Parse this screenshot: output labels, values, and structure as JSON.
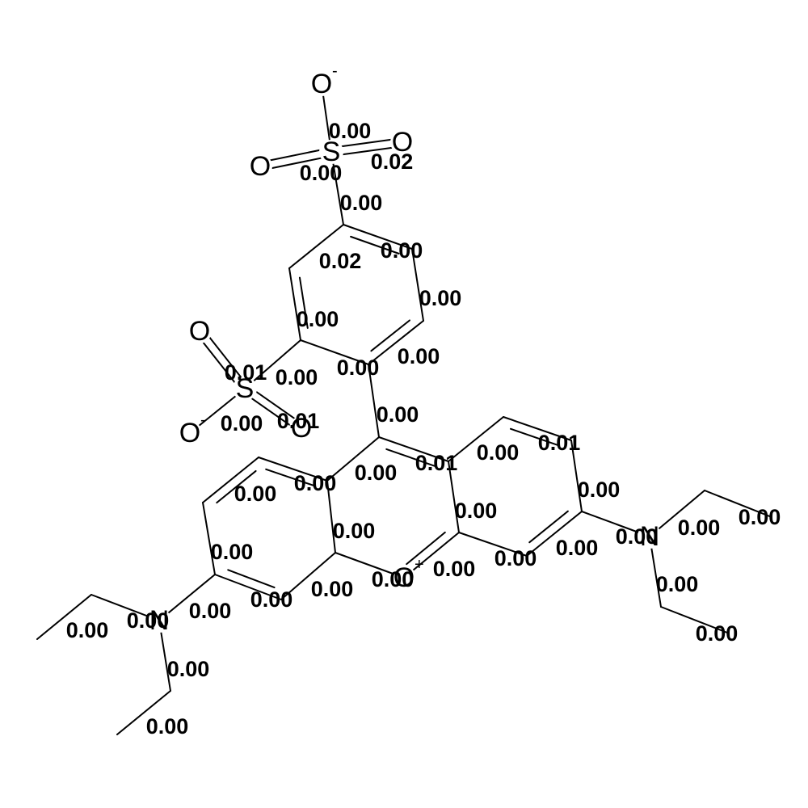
{
  "molecule": {
    "atoms": [
      {
        "id": "O_top_minus",
        "label": "O",
        "charge": "-"
      },
      {
        "id": "S_top",
        "label": "S",
        "charge": ""
      },
      {
        "id": "O_top_left",
        "label": "O",
        "charge": ""
      },
      {
        "id": "O_top_right",
        "label": "O",
        "charge": ""
      },
      {
        "id": "O_mid_top",
        "label": "O",
        "charge": ""
      },
      {
        "id": "S_mid",
        "label": "S",
        "charge": ""
      },
      {
        "id": "O_mid_minus",
        "label": "O",
        "charge": "-"
      },
      {
        "id": "O_mid_right",
        "label": "O",
        "charge": ""
      },
      {
        "id": "N_left",
        "label": "N",
        "charge": ""
      },
      {
        "id": "N_right",
        "label": "N",
        "charge": ""
      },
      {
        "id": "O_ring_plus",
        "label": "O",
        "charge": "+"
      }
    ],
    "weights": [
      "0.00",
      "0.02",
      "0.00",
      "0.00",
      "0.02",
      "0.00",
      "0.00",
      "0.00",
      "0.00",
      "0.01",
      "0.00",
      "0.00",
      "0.00",
      "0.01",
      "0.01",
      "0.00",
      "0.01",
      "0.00",
      "0.00",
      "0.00",
      "0.00",
      "0.00",
      "0.00",
      "0.00",
      "0.00",
      "0.00",
      "0.00",
      "0.00",
      "0.00",
      "0.00",
      "0.00",
      "0.00",
      "0.00",
      "0.00",
      "0.00",
      "0.00",
      "0.00",
      "0.00",
      "0.00",
      "0.00",
      "0.00",
      "0.00",
      "0.00",
      "0.00"
    ]
  }
}
